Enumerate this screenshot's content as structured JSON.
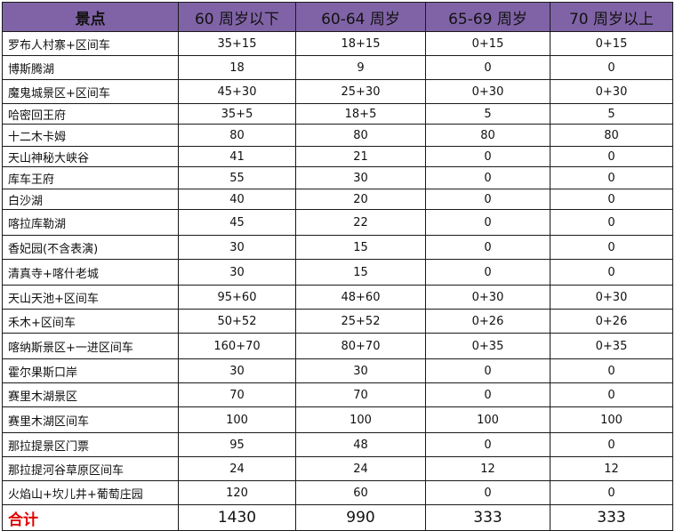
{
  "headers": [
    "景点",
    "60 周岁以下",
    "60-64 周岁",
    "65-69 周岁",
    "70 周岁以上"
  ],
  "rows": [
    [
      "罗布人村寨+区间车",
      "35+15",
      "18+15",
      "0+15",
      "0+15"
    ],
    [
      "博斯腾湖",
      "18",
      "9",
      "0",
      "0"
    ],
    [
      "魔鬼城景区+区间车",
      "45+30",
      "25+30",
      "0+30",
      "0+30"
    ],
    [
      "哈密回王府",
      "35+5",
      "18+5",
      "5",
      "5"
    ],
    [
      "十二木卡姆",
      "80",
      "80",
      "80",
      "80"
    ],
    [
      "天山神秘大峡谷",
      "41",
      "21",
      "0",
      "0"
    ],
    [
      "库车王府",
      "55",
      "30",
      "0",
      "0"
    ],
    [
      "白沙湖",
      "40",
      "20",
      "0",
      "0"
    ],
    [
      "喀拉库勒湖",
      "45",
      "22",
      "0",
      "0"
    ],
    [
      "香妃园(不含表演)",
      "30",
      "15",
      "0",
      "0"
    ],
    [
      "清真寺+喀什老城",
      "30",
      "15",
      "0",
      "0"
    ],
    [
      "天山天池+区间车",
      "95+60",
      "48+60",
      "0+30",
      "0+30"
    ],
    [
      "禾木+区间车",
      "50+52",
      "25+52",
      "0+26",
      "0+26"
    ],
    [
      "喀纳斯景区+一进区间车",
      "160+70",
      "80+70",
      "0+35",
      "0+35"
    ],
    [
      "霍尔果斯口岸",
      "30",
      "30",
      "0",
      "0"
    ],
    [
      "赛里木湖景区",
      "70",
      "70",
      "0",
      "0"
    ],
    [
      "赛里木湖区间车",
      "100",
      "100",
      "100",
      "100"
    ],
    [
      "那拉提景区门票",
      "95",
      "48",
      "0",
      "0"
    ],
    [
      "那拉提河谷草原区间车",
      "24",
      "24",
      "12",
      "12"
    ],
    [
      "火焰山+坎儿井+葡萄庄园",
      "120",
      "60",
      "0",
      "0"
    ]
  ],
  "total": [
    "合计",
    "1430",
    "990",
    "333",
    "333"
  ],
  "colors": {
    "header_bg": "#8063a6",
    "total_label": "#e00000"
  }
}
